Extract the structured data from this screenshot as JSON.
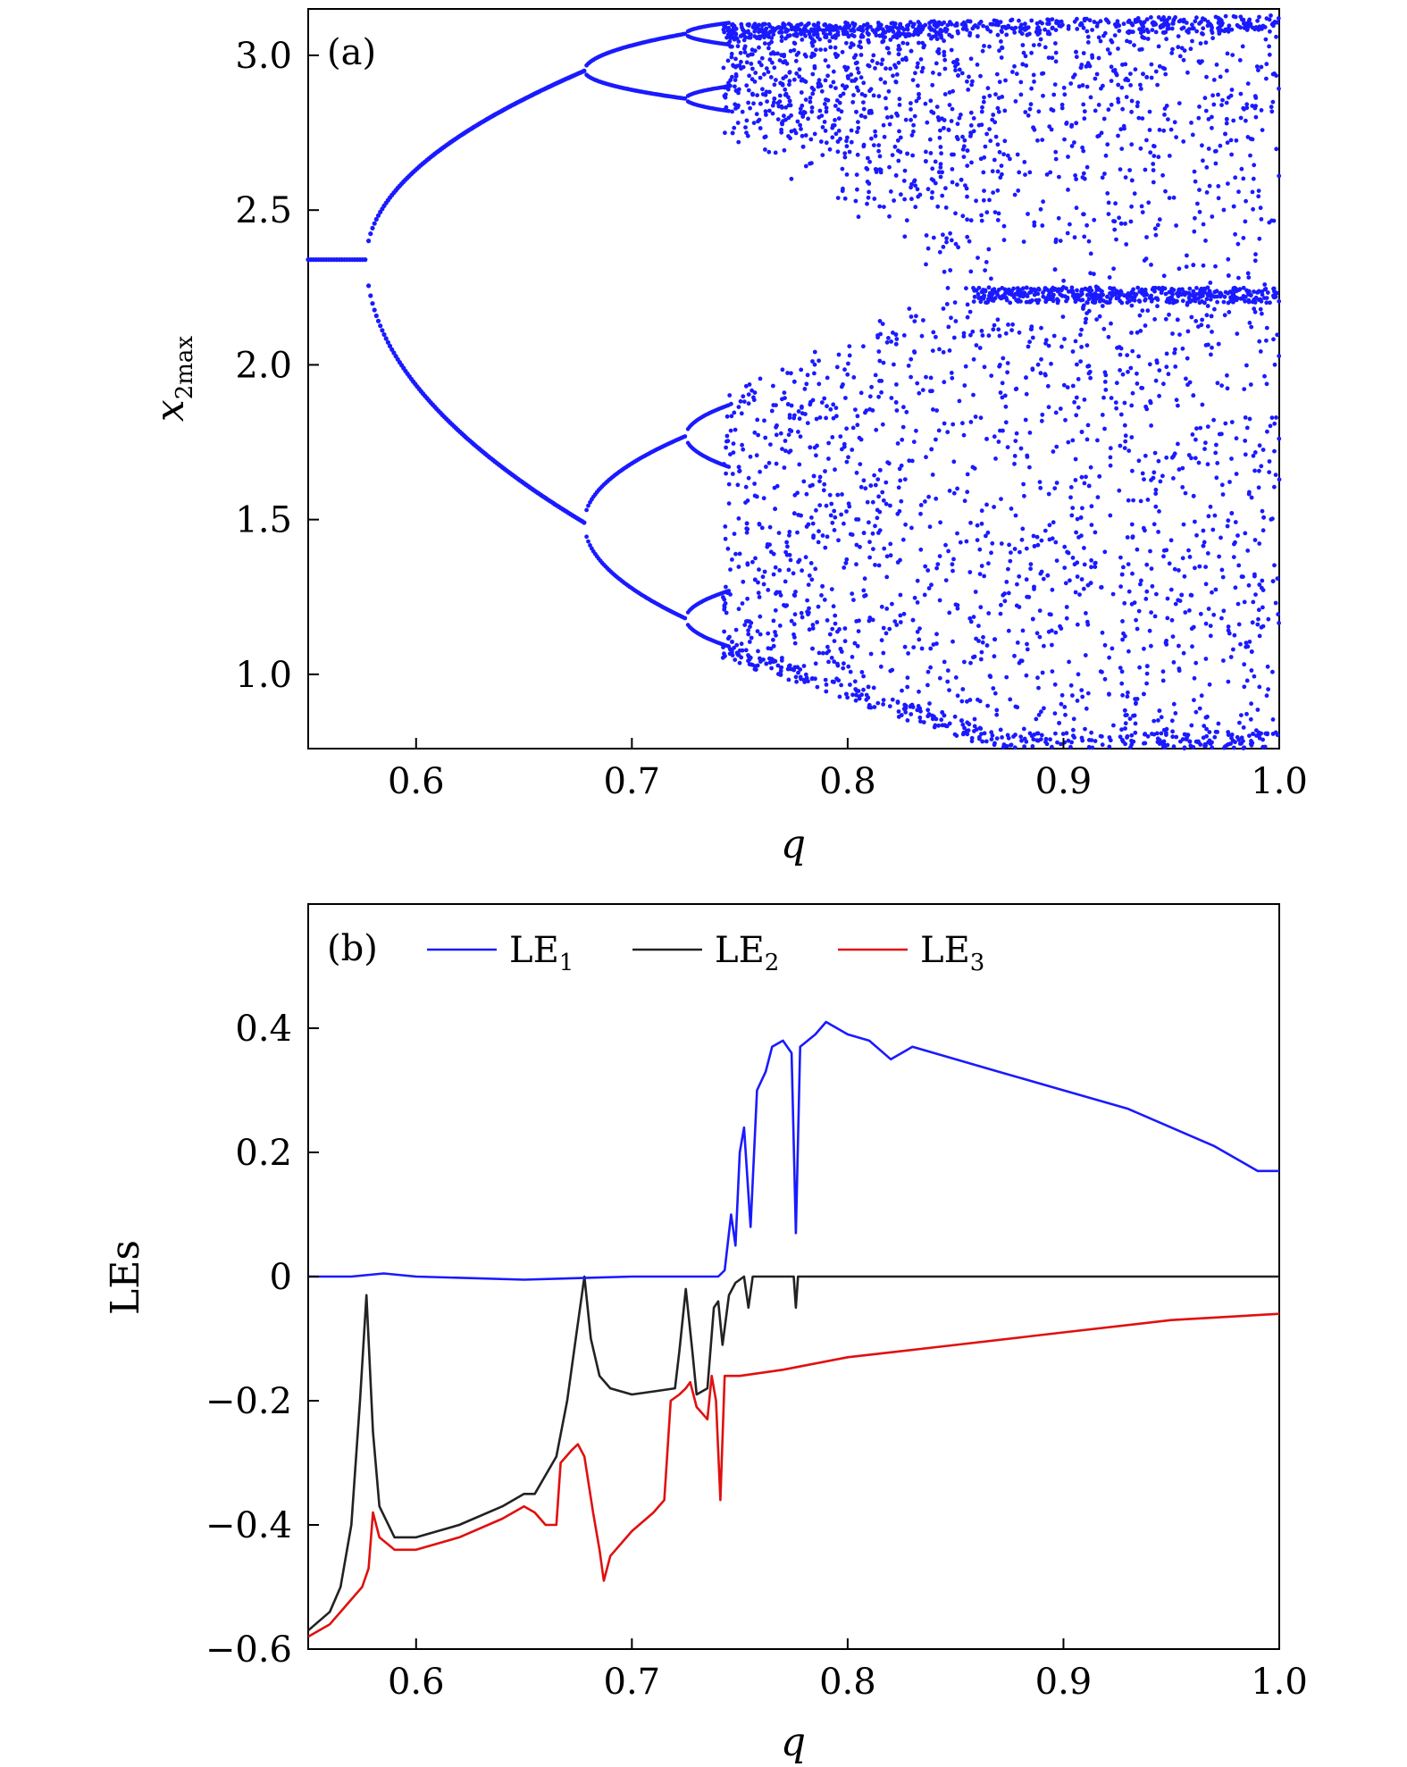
{
  "chart_data": [
    {
      "type": "scatter",
      "panel_label": "(a)",
      "xlabel": "q",
      "ylabel": {
        "base": "x",
        "subscript": "2max"
      },
      "xlim": [
        0.55,
        1.0
      ],
      "ylim": [
        0.76,
        3.15
      ],
      "xticks": [
        0.6,
        0.7,
        0.8,
        0.9,
        1.0
      ],
      "xtick_labels": [
        "0.6",
        "0.7",
        "0.8",
        "0.9",
        "1.0"
      ],
      "yticks": [
        1.0,
        1.5,
        2.0,
        2.5,
        3.0
      ],
      "ytick_labels": [
        "1.0",
        "1.5",
        "2.0",
        "2.5",
        "3.0"
      ],
      "grid": false,
      "color": "#1a1aff",
      "description_points": {
        "period1": {
          "q": [
            0.55,
            0.577
          ],
          "x2max": 2.34
        },
        "period2_upper": [
          [
            0.577,
            2.34
          ],
          [
            0.6,
            2.66
          ],
          [
            0.65,
            2.88
          ],
          [
            0.678,
            2.95
          ]
        ],
        "period2_lower": [
          [
            0.577,
            2.34
          ],
          [
            0.6,
            2.02
          ],
          [
            0.65,
            1.62
          ],
          [
            0.678,
            1.49
          ]
        ],
        "period4_bifurcation_q": 0.678,
        "period8_bifurcation_q": 0.725,
        "chaos_onset_q": 0.745,
        "chaotic_band_range": [
          [
            0.745,
            0.8
          ],
          [
            0.8,
            1.0
          ]
        ]
      }
    },
    {
      "type": "line",
      "panel_label": "(b)",
      "xlabel": "q",
      "ylabel": "LEs",
      "xlim": [
        0.55,
        1.0
      ],
      "ylim": [
        -0.6,
        0.6
      ],
      "xticks": [
        0.6,
        0.7,
        0.8,
        0.9,
        1.0
      ],
      "xtick_labels": [
        "0.6",
        "0.7",
        "0.8",
        "0.9",
        "1.0"
      ],
      "yticks": [
        -0.6,
        -0.4,
        -0.2,
        0,
        0.2,
        0.4
      ],
      "ytick_labels": [
        "−0.6",
        "−0.4",
        "−0.2",
        "0",
        "0.2",
        "0.4"
      ],
      "grid": false,
      "legend_position": "top",
      "series": [
        {
          "name": "LE1",
          "name_base": "LE",
          "name_sub": "1",
          "color": "#1a1aff",
          "points": [
            [
              0.55,
              0.0
            ],
            [
              0.57,
              0.0
            ],
            [
              0.585,
              0.005
            ],
            [
              0.6,
              0.0
            ],
            [
              0.65,
              -0.005
            ],
            [
              0.7,
              0.0
            ],
            [
              0.74,
              0.0
            ],
            [
              0.743,
              0.01
            ],
            [
              0.746,
              0.1
            ],
            [
              0.748,
              0.05
            ],
            [
              0.75,
              0.2
            ],
            [
              0.752,
              0.24
            ],
            [
              0.755,
              0.08
            ],
            [
              0.758,
              0.3
            ],
            [
              0.762,
              0.33
            ],
            [
              0.765,
              0.37
            ],
            [
              0.77,
              0.38
            ],
            [
              0.774,
              0.36
            ],
            [
              0.776,
              0.07
            ],
            [
              0.778,
              0.37
            ],
            [
              0.785,
              0.39
            ],
            [
              0.79,
              0.41
            ],
            [
              0.8,
              0.39
            ],
            [
              0.81,
              0.38
            ],
            [
              0.82,
              0.35
            ],
            [
              0.83,
              0.37
            ],
            [
              0.85,
              0.35
            ],
            [
              0.87,
              0.33
            ],
            [
              0.9,
              0.3
            ],
            [
              0.93,
              0.27
            ],
            [
              0.95,
              0.24
            ],
            [
              0.97,
              0.21
            ],
            [
              0.99,
              0.17
            ],
            [
              1.0,
              0.17
            ]
          ]
        },
        {
          "name": "LE2",
          "name_base": "LE",
          "name_sub": "2",
          "color": "#222222",
          "points": [
            [
              0.55,
              -0.57
            ],
            [
              0.56,
              -0.54
            ],
            [
              0.565,
              -0.5
            ],
            [
              0.57,
              -0.4
            ],
            [
              0.574,
              -0.2
            ],
            [
              0.577,
              -0.03
            ],
            [
              0.58,
              -0.25
            ],
            [
              0.583,
              -0.37
            ],
            [
              0.59,
              -0.42
            ],
            [
              0.6,
              -0.42
            ],
            [
              0.62,
              -0.4
            ],
            [
              0.64,
              -0.37
            ],
            [
              0.65,
              -0.35
            ],
            [
              0.655,
              -0.35
            ],
            [
              0.66,
              -0.32
            ],
            [
              0.665,
              -0.29
            ],
            [
              0.67,
              -0.2
            ],
            [
              0.674,
              -0.1
            ],
            [
              0.678,
              0.0
            ],
            [
              0.681,
              -0.1
            ],
            [
              0.685,
              -0.16
            ],
            [
              0.69,
              -0.18
            ],
            [
              0.7,
              -0.19
            ],
            [
              0.71,
              -0.185
            ],
            [
              0.72,
              -0.18
            ],
            [
              0.722,
              -0.12
            ],
            [
              0.725,
              -0.02
            ],
            [
              0.728,
              -0.12
            ],
            [
              0.73,
              -0.19
            ],
            [
              0.735,
              -0.18
            ],
            [
              0.738,
              -0.05
            ],
            [
              0.74,
              -0.04
            ],
            [
              0.742,
              -0.11
            ],
            [
              0.745,
              -0.03
            ],
            [
              0.748,
              -0.01
            ],
            [
              0.752,
              0.0
            ],
            [
              0.754,
              -0.05
            ],
            [
              0.756,
              0.0
            ],
            [
              0.775,
              0.0
            ],
            [
              0.776,
              -0.05
            ],
            [
              0.777,
              0.0
            ],
            [
              1.0,
              0.0
            ]
          ]
        },
        {
          "name": "LE3",
          "name_base": "LE",
          "name_sub": "3",
          "color": "#e01010",
          "points": [
            [
              0.55,
              -0.58
            ],
            [
              0.56,
              -0.56
            ],
            [
              0.57,
              -0.52
            ],
            [
              0.575,
              -0.5
            ],
            [
              0.578,
              -0.47
            ],
            [
              0.58,
              -0.38
            ],
            [
              0.583,
              -0.42
            ],
            [
              0.59,
              -0.44
            ],
            [
              0.6,
              -0.44
            ],
            [
              0.62,
              -0.42
            ],
            [
              0.64,
              -0.39
            ],
            [
              0.65,
              -0.37
            ],
            [
              0.655,
              -0.38
            ],
            [
              0.66,
              -0.4
            ],
            [
              0.665,
              -0.4
            ],
            [
              0.667,
              -0.3
            ],
            [
              0.672,
              -0.28
            ],
            [
              0.675,
              -0.27
            ],
            [
              0.678,
              -0.29
            ],
            [
              0.682,
              -0.38
            ],
            [
              0.685,
              -0.44
            ],
            [
              0.687,
              -0.49
            ],
            [
              0.69,
              -0.45
            ],
            [
              0.7,
              -0.41
            ],
            [
              0.71,
              -0.38
            ],
            [
              0.715,
              -0.36
            ],
            [
              0.718,
              -0.2
            ],
            [
              0.722,
              -0.19
            ],
            [
              0.725,
              -0.18
            ],
            [
              0.727,
              -0.17
            ],
            [
              0.73,
              -0.21
            ],
            [
              0.735,
              -0.23
            ],
            [
              0.737,
              -0.16
            ],
            [
              0.739,
              -0.2
            ],
            [
              0.741,
              -0.36
            ],
            [
              0.743,
              -0.16
            ],
            [
              0.75,
              -0.16
            ],
            [
              0.77,
              -0.15
            ],
            [
              0.8,
              -0.13
            ],
            [
              0.85,
              -0.11
            ],
            [
              0.9,
              -0.09
            ],
            [
              0.95,
              -0.07
            ],
            [
              1.0,
              -0.06
            ]
          ]
        }
      ]
    }
  ]
}
